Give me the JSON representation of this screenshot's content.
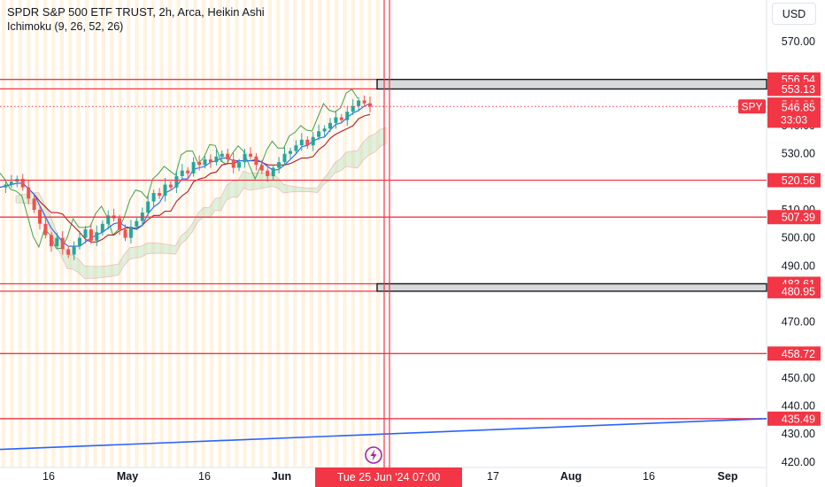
{
  "legend": {
    "title": "SPDR S&P 500 ETF TRUST, 2h, Arca, Heikin Ashi",
    "indicator": "Ichimoku (9, 26, 52, 26)"
  },
  "currency": "USD",
  "symbol_tag": "SPY",
  "countdown": "33:03",
  "crosshair_label": "Tue 25 Jun '24   07:00",
  "colors": {
    "candle_up": "#26a69a",
    "candle_down": "#ef5350",
    "level_line": "#f23645",
    "trend_line": "#2962ff",
    "conversion_line": "#2962ff",
    "base_line": "#b71c1c",
    "lagging_span": "#43a047",
    "cloud_bull": "#a5d6a7",
    "cloud_bear": "#ef9a9a",
    "zone_fill": "#d9d9d9",
    "session_band": "#fff3e0"
  },
  "chart_data": {
    "type": "candlestick",
    "y_axis_ticks": [
      "570.00",
      "540.00",
      "530.00",
      "510.00",
      "500.00",
      "490.00",
      "470.00",
      "450.00",
      "440.00",
      "430.00",
      "420.00"
    ],
    "x_axis_ticks": [
      "16",
      "May",
      "16",
      "Jun",
      "17",
      "Aug",
      "16",
      "Sep"
    ],
    "ylim": [
      420,
      575
    ],
    "last_price": 546.85,
    "horizontal_levels": [
      520.56,
      507.39,
      458.72,
      435.49
    ],
    "zones": [
      {
        "top": 556.54,
        "bottom": 553.13
      },
      {
        "top": 483.61,
        "bottom": 480.95
      }
    ],
    "zone_edge_labels": [
      "556.54",
      "553.13",
      "546.92",
      "520.56",
      "507.39",
      "483.61",
      "480.95",
      "458.72",
      "435.49"
    ],
    "trend_line": {
      "start": 424.5,
      "end": 435.49
    },
    "price_path": [
      518,
      519,
      520,
      521,
      518,
      514,
      510,
      505,
      501,
      497,
      500,
      496,
      494,
      497,
      500,
      503,
      499,
      502,
      505,
      508,
      507,
      503,
      500,
      504,
      506,
      509,
      513,
      516,
      515,
      519,
      518,
      522,
      524,
      523,
      527,
      526,
      528,
      527,
      529,
      530,
      528,
      525,
      527,
      530,
      529,
      526,
      524,
      522,
      525,
      527,
      530,
      531,
      533,
      535,
      533,
      536,
      538,
      539,
      541,
      543,
      542,
      545,
      547,
      549,
      548,
      546.85
    ]
  }
}
